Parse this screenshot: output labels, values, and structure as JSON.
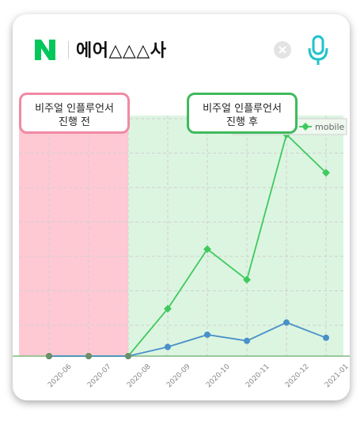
{
  "search": {
    "query": "에어△△△사"
  },
  "callouts": {
    "before": {
      "line1": "비주얼 인플루언서",
      "line2": "진행 전",
      "color": "#f08aa3"
    },
    "after": {
      "line1": "비주얼 인플루언서",
      "line2": "진행 후",
      "color": "#3fba5c"
    }
  },
  "colors": {
    "brand": "#03c75a",
    "mic": "#1fc3c9",
    "before_region": "#ffc9d3",
    "after_region": "#dcf5e1",
    "mobile": "#3fc95e",
    "pc": "#4a90c8"
  },
  "chart_data": {
    "type": "line",
    "categories": [
      "2020-06",
      "2020-07",
      "2020-08",
      "2020-09",
      "2020-10",
      "2020-11",
      "2020-12",
      "2021-01"
    ],
    "series": [
      {
        "name": "mobile",
        "values": [
          0,
          0,
          0,
          31,
          70,
          50,
          145,
          120
        ]
      },
      {
        "values": [
          0,
          0,
          0,
          6,
          14,
          10,
          22,
          12
        ]
      }
    ],
    "ylim": [
      0,
      165
    ],
    "legend": {
      "position": "top-right"
    },
    "grid": true,
    "highlight_before": [
      "2020-06",
      "2020-08"
    ],
    "highlight_after": [
      "2020-08",
      "2021-01"
    ]
  }
}
